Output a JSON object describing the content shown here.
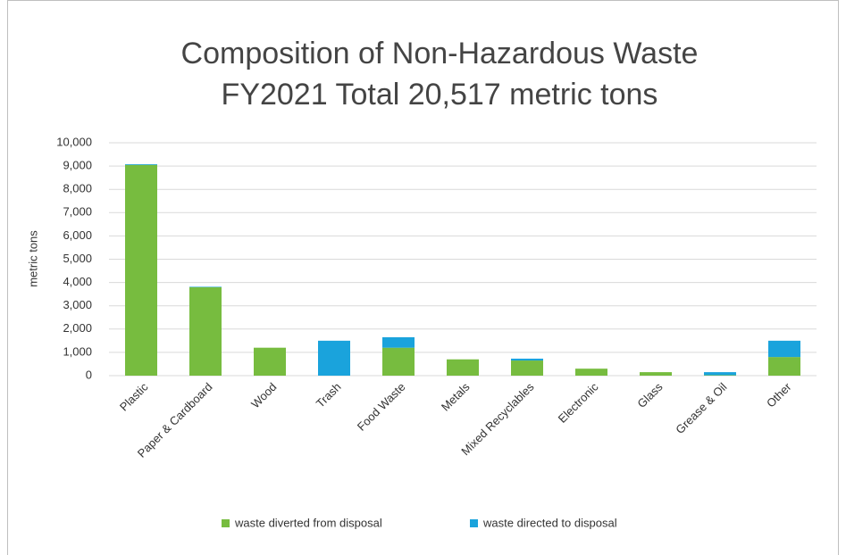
{
  "chart_data": {
    "type": "stacked_bar",
    "title": "Composition of Non-Hazardous Waste",
    "subtitle": "FY2021 Total 20,517 metric tons",
    "y_label": "metric tons",
    "categories": [
      "Plastic",
      "Paper & Cardboard",
      "Wood",
      "Trash",
      "Food Waste",
      "Metals",
      "Mixed Recyclables",
      "Electronic",
      "Glass",
      "Grease & Oil",
      "Other"
    ],
    "series": [
      {
        "name": "waste diverted from disposal",
        "color": "#77bc3f",
        "values": [
          9050,
          3800,
          1200,
          0,
          1200,
          700,
          650,
          300,
          150,
          20,
          800
        ]
      },
      {
        "name": "waste directed to disposal",
        "color": "#1aa3dc",
        "values": [
          30,
          20,
          0,
          1500,
          450,
          0,
          80,
          0,
          0,
          130,
          700
        ]
      }
    ],
    "ylim": [
      0,
      10000
    ],
    "yticks": [
      0,
      {
        "value": 1000,
        "label": "1,000"
      },
      {
        "value": 2000,
        "label": "2,000"
      },
      {
        "value": 3000,
        "label": "3,000"
      },
      {
        "value": 4000,
        "label": "4,000"
      },
      {
        "value": 5000,
        "label": "5,000"
      },
      {
        "value": 6000,
        "label": "6,000"
      },
      {
        "value": 7000,
        "label": "7,000"
      },
      {
        "value": 8000,
        "label": "8,000"
      },
      {
        "value": 9000,
        "label": "9,000"
      },
      {
        "value": 10000,
        "label": "10,000"
      }
    ],
    "grid": true,
    "legend": "bottom"
  }
}
